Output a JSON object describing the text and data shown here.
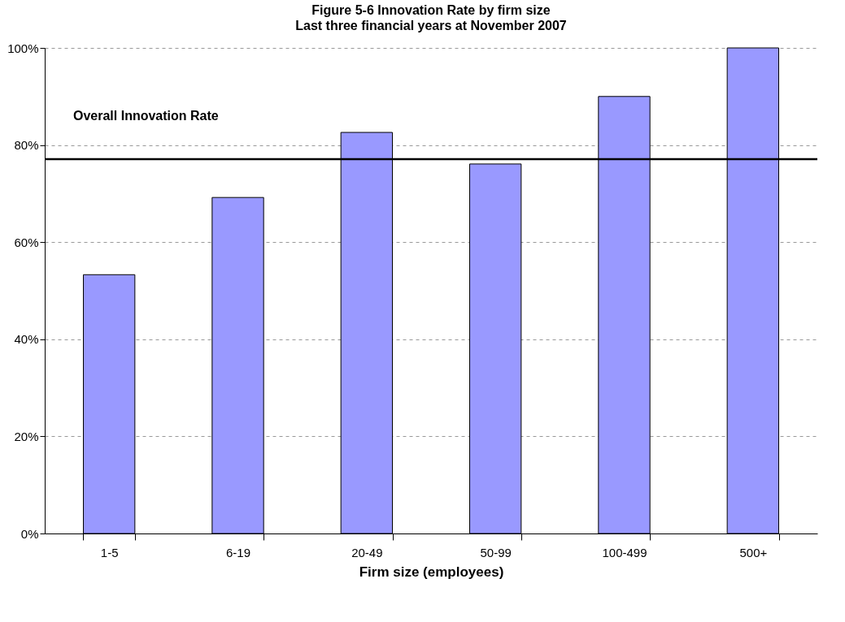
{
  "chart_data": {
    "type": "bar",
    "title": "Figure 5-6 Innovation Rate by firm size",
    "subtitle": "Last three financial years at November 2007",
    "xlabel": "Firm size (employees)",
    "categories": [
      "1-5",
      "6-19",
      "20-49",
      "50-99",
      "100-499",
      "500+"
    ],
    "values": [
      53.3,
      69.2,
      82.6,
      76.1,
      90,
      100
    ],
    "color": "#9999ff",
    "ylim": [
      0,
      100
    ],
    "yticks": [
      {
        "value": 0,
        "label": "0%"
      },
      {
        "value": 20,
        "label": "20%"
      },
      {
        "value": 40,
        "label": "40%"
      },
      {
        "value": 60,
        "label": "60%"
      },
      {
        "value": 80,
        "label": "80%"
      },
      {
        "value": 100,
        "label": "100%"
      }
    ],
    "grid": "y",
    "legend": false,
    "ref_lines": [
      {
        "axis": "y",
        "value": 77.1,
        "label": "Overall Innovation Rate",
        "color": "#000000"
      }
    ]
  }
}
